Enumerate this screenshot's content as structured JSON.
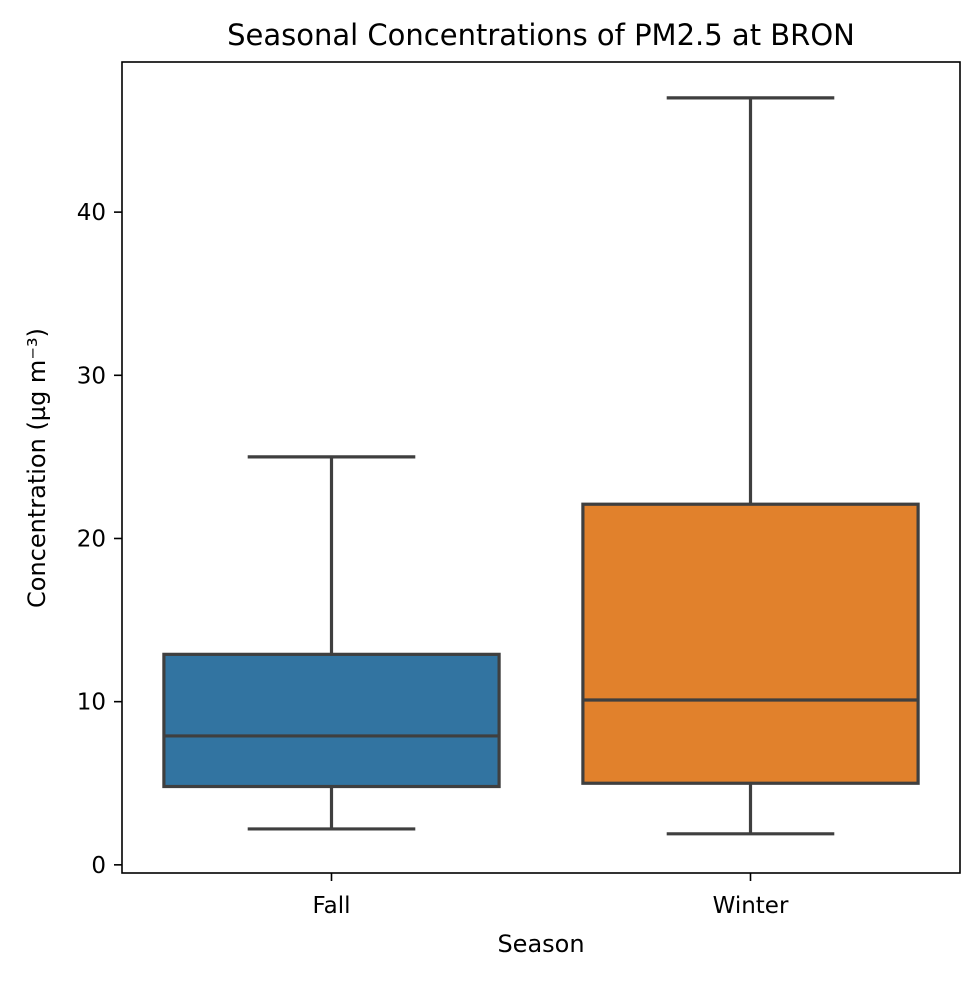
{
  "chart_data": {
    "type": "box",
    "title": "Seasonal Concentrations of PM2.5 at BRON",
    "xlabel": "Season",
    "ylabel": "Concentration (µg m⁻³)",
    "ylim": [
      -0.5,
      49.2
    ],
    "yticks": [
      0,
      10,
      20,
      30,
      40
    ],
    "grid": false,
    "categories": [
      "Fall",
      "Winter"
    ],
    "boxes": [
      {
        "name": "Fall",
        "whisker_low": 2.2,
        "q1": 4.8,
        "median": 7.9,
        "q3": 12.9,
        "whisker_high": 25.0,
        "color": "#3274a1"
      },
      {
        "name": "Winter",
        "whisker_low": 1.9,
        "q1": 5.0,
        "median": 10.1,
        "q3": 22.1,
        "whisker_high": 47.0,
        "color": "#e1812c"
      }
    ],
    "line_color": "#3f3f3f"
  }
}
